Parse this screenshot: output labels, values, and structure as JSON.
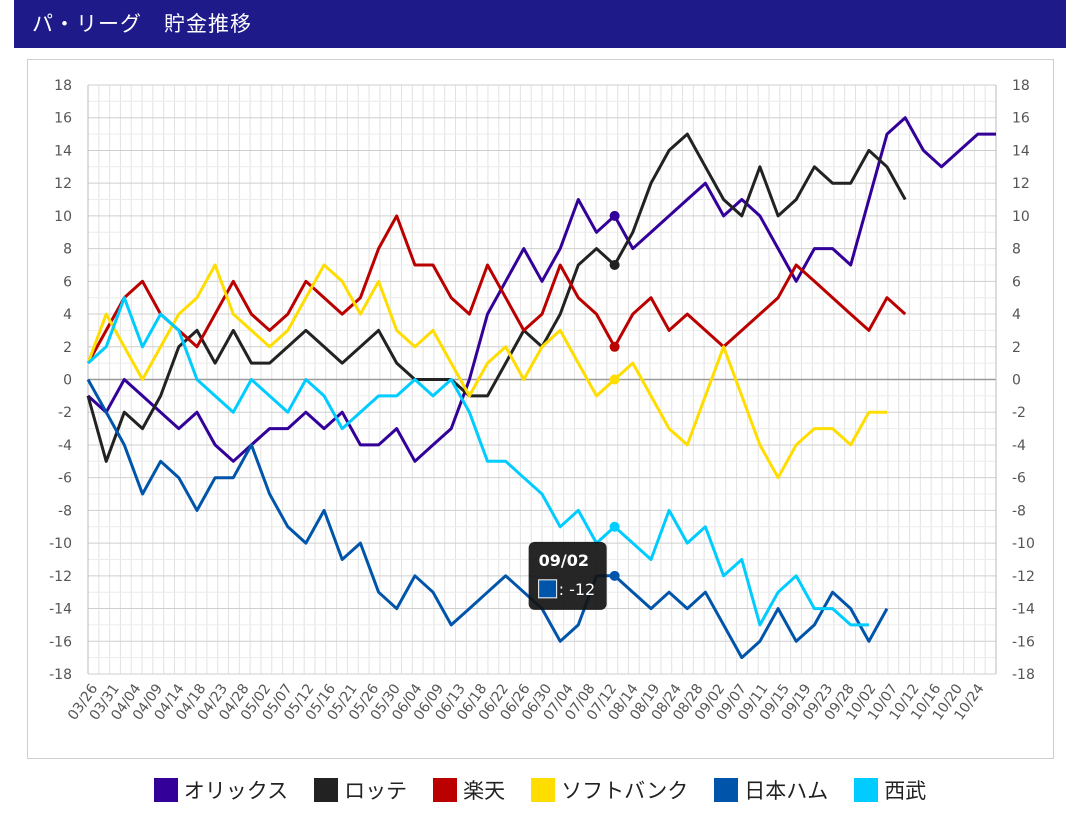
{
  "page_title": "パ・リーグ　貯金推移",
  "chart_data": {
    "type": "line",
    "title": "パ・リーグ　貯金推移",
    "xlabel": "",
    "ylabel": "",
    "ylim": [
      -18,
      18
    ],
    "yticks": [
      18,
      16,
      14,
      12,
      10,
      8,
      6,
      4,
      2,
      0,
      -2,
      -4,
      -6,
      -8,
      -10,
      -12,
      -14,
      -16,
      -18
    ],
    "x_tick_labels": [
      "03/26",
      "03/31",
      "04/04",
      "04/09",
      "04/14",
      "04/18",
      "04/23",
      "04/28",
      "05/02",
      "05/07",
      "05/12",
      "05/16",
      "05/21",
      "05/26",
      "05/30",
      "06/04",
      "06/09",
      "06/13",
      "06/18",
      "06/22",
      "06/26",
      "06/30",
      "07/04",
      "07/08",
      "07/12",
      "08/14",
      "08/19",
      "08/24",
      "08/28",
      "09/02",
      "09/07",
      "09/11",
      "09/15",
      "09/19",
      "09/23",
      "09/28",
      "10/02",
      "10/07",
      "10/12",
      "10/16",
      "10/20",
      "10/24"
    ],
    "grid": true,
    "legend_position": "bottom",
    "tooltip": {
      "date": "09/02",
      "value_text": ": -12",
      "series_index": 4
    },
    "hover_x_index": 29,
    "series": [
      {
        "name": "オリックス",
        "color": "#330099",
        "points": [
          [
            0,
            -1
          ],
          [
            1,
            -2
          ],
          [
            2,
            0
          ],
          [
            3,
            -1
          ],
          [
            4,
            -2
          ],
          [
            5,
            -3
          ],
          [
            6,
            -2
          ],
          [
            7,
            -4
          ],
          [
            8,
            -5
          ],
          [
            9,
            -4
          ],
          [
            10,
            -3
          ],
          [
            11,
            -3
          ],
          [
            12,
            -2
          ],
          [
            13,
            -3
          ],
          [
            14,
            -2
          ],
          [
            15,
            -4
          ],
          [
            16,
            -4
          ],
          [
            17,
            -3
          ],
          [
            18,
            -5
          ],
          [
            19,
            -4
          ],
          [
            20,
            -3
          ],
          [
            21,
            0
          ],
          [
            22,
            4
          ],
          [
            23,
            6
          ],
          [
            24,
            8
          ],
          [
            25,
            6
          ],
          [
            26,
            8
          ],
          [
            27,
            11
          ],
          [
            28,
            9
          ],
          [
            29,
            10
          ],
          [
            30,
            8
          ],
          [
            31,
            9
          ],
          [
            32,
            10
          ],
          [
            33,
            11
          ],
          [
            34,
            12
          ],
          [
            35,
            10
          ],
          [
            36,
            11
          ],
          [
            37,
            10
          ],
          [
            38,
            8
          ],
          [
            39,
            6
          ],
          [
            40,
            8
          ],
          [
            41,
            8
          ],
          [
            42,
            7
          ],
          [
            43,
            11
          ],
          [
            44,
            15
          ],
          [
            45,
            16
          ],
          [
            46,
            14
          ],
          [
            47,
            13
          ],
          [
            48,
            14
          ],
          [
            49,
            15
          ],
          [
            50,
            15
          ]
        ]
      },
      {
        "name": "ロッテ",
        "color": "#222222",
        "points": [
          [
            0,
            -1
          ],
          [
            1,
            -5
          ],
          [
            2,
            -2
          ],
          [
            3,
            -3
          ],
          [
            4,
            -1
          ],
          [
            5,
            2
          ],
          [
            6,
            3
          ],
          [
            7,
            1
          ],
          [
            8,
            3
          ],
          [
            9,
            1
          ],
          [
            10,
            1
          ],
          [
            11,
            2
          ],
          [
            12,
            3
          ],
          [
            13,
            2
          ],
          [
            14,
            1
          ],
          [
            15,
            2
          ],
          [
            16,
            3
          ],
          [
            17,
            1
          ],
          [
            18,
            0
          ],
          [
            19,
            0
          ],
          [
            20,
            0
          ],
          [
            21,
            -1
          ],
          [
            22,
            -1
          ],
          [
            23,
            1
          ],
          [
            24,
            3
          ],
          [
            25,
            2
          ],
          [
            26,
            4
          ],
          [
            27,
            7
          ],
          [
            28,
            8
          ],
          [
            29,
            7
          ],
          [
            30,
            9
          ],
          [
            31,
            12
          ],
          [
            32,
            14
          ],
          [
            33,
            15
          ],
          [
            34,
            13
          ],
          [
            35,
            11
          ],
          [
            36,
            10
          ],
          [
            37,
            13
          ],
          [
            38,
            10
          ],
          [
            39,
            11
          ],
          [
            40,
            13
          ],
          [
            41,
            12
          ],
          [
            42,
            12
          ],
          [
            43,
            14
          ],
          [
            44,
            13
          ],
          [
            45,
            11
          ]
        ]
      },
      {
        "name": "楽天",
        "color": "#bb0000",
        "points": [
          [
            0,
            1
          ],
          [
            1,
            3
          ],
          [
            2,
            5
          ],
          [
            3,
            6
          ],
          [
            4,
            4
          ],
          [
            5,
            3
          ],
          [
            6,
            2
          ],
          [
            7,
            4
          ],
          [
            8,
            6
          ],
          [
            9,
            4
          ],
          [
            10,
            3
          ],
          [
            11,
            4
          ],
          [
            12,
            6
          ],
          [
            13,
            5
          ],
          [
            14,
            4
          ],
          [
            15,
            5
          ],
          [
            16,
            8
          ],
          [
            17,
            10
          ],
          [
            18,
            7
          ],
          [
            19,
            7
          ],
          [
            20,
            5
          ],
          [
            21,
            4
          ],
          [
            22,
            7
          ],
          [
            23,
            5
          ],
          [
            24,
            3
          ],
          [
            25,
            4
          ],
          [
            26,
            7
          ],
          [
            27,
            5
          ],
          [
            28,
            4
          ],
          [
            29,
            2
          ],
          [
            30,
            4
          ],
          [
            31,
            5
          ],
          [
            32,
            3
          ],
          [
            33,
            4
          ],
          [
            34,
            3
          ],
          [
            35,
            2
          ],
          [
            36,
            3
          ],
          [
            37,
            4
          ],
          [
            38,
            5
          ],
          [
            39,
            7
          ],
          [
            40,
            6
          ],
          [
            41,
            5
          ],
          [
            42,
            4
          ],
          [
            43,
            3
          ],
          [
            44,
            5
          ],
          [
            45,
            4
          ]
        ]
      },
      {
        "name": "ソフトバンク",
        "color": "#ffdd00",
        "points": [
          [
            0,
            1
          ],
          [
            1,
            4
          ],
          [
            2,
            2
          ],
          [
            3,
            0
          ],
          [
            4,
            2
          ],
          [
            5,
            4
          ],
          [
            6,
            5
          ],
          [
            7,
            7
          ],
          [
            8,
            4
          ],
          [
            9,
            3
          ],
          [
            10,
            2
          ],
          [
            11,
            3
          ],
          [
            12,
            5
          ],
          [
            13,
            7
          ],
          [
            14,
            6
          ],
          [
            15,
            4
          ],
          [
            16,
            6
          ],
          [
            17,
            3
          ],
          [
            18,
            2
          ],
          [
            19,
            3
          ],
          [
            20,
            1
          ],
          [
            21,
            -1
          ],
          [
            22,
            1
          ],
          [
            23,
            2
          ],
          [
            24,
            0
          ],
          [
            25,
            2
          ],
          [
            26,
            3
          ],
          [
            27,
            1
          ],
          [
            28,
            -1
          ],
          [
            29,
            0
          ],
          [
            30,
            1
          ],
          [
            31,
            -1
          ],
          [
            32,
            -3
          ],
          [
            33,
            -4
          ],
          [
            34,
            -1
          ],
          [
            35,
            2
          ],
          [
            36,
            -1
          ],
          [
            37,
            -4
          ],
          [
            38,
            -6
          ],
          [
            39,
            -4
          ],
          [
            40,
            -3
          ],
          [
            41,
            -3
          ],
          [
            42,
            -4
          ],
          [
            43,
            -2
          ],
          [
            44,
            -2
          ]
        ]
      },
      {
        "name": "日本ハム",
        "color": "#0055aa",
        "points": [
          [
            0,
            0
          ],
          [
            1,
            -2
          ],
          [
            2,
            -4
          ],
          [
            3,
            -7
          ],
          [
            4,
            -5
          ],
          [
            5,
            -6
          ],
          [
            6,
            -8
          ],
          [
            7,
            -6
          ],
          [
            8,
            -6
          ],
          [
            9,
            -4
          ],
          [
            10,
            -7
          ],
          [
            11,
            -9
          ],
          [
            12,
            -10
          ],
          [
            13,
            -8
          ],
          [
            14,
            -11
          ],
          [
            15,
            -10
          ],
          [
            16,
            -13
          ],
          [
            17,
            -14
          ],
          [
            18,
            -12
          ],
          [
            19,
            -13
          ],
          [
            20,
            -15
          ],
          [
            21,
            -14
          ],
          [
            22,
            -13
          ],
          [
            23,
            -12
          ],
          [
            24,
            -13
          ],
          [
            25,
            -14
          ],
          [
            26,
            -16
          ],
          [
            27,
            -15
          ],
          [
            28,
            -12
          ],
          [
            29,
            -12
          ],
          [
            30,
            -13
          ],
          [
            31,
            -14
          ],
          [
            32,
            -13
          ],
          [
            33,
            -14
          ],
          [
            34,
            -13
          ],
          [
            35,
            -15
          ],
          [
            36,
            -17
          ],
          [
            37,
            -16
          ],
          [
            38,
            -14
          ],
          [
            39,
            -16
          ],
          [
            40,
            -15
          ],
          [
            41,
            -13
          ],
          [
            42,
            -14
          ],
          [
            43,
            -16
          ],
          [
            44,
            -14
          ]
        ]
      },
      {
        "name": "西武",
        "color": "#00ccff",
        "points": [
          [
            0,
            1
          ],
          [
            1,
            2
          ],
          [
            2,
            5
          ],
          [
            3,
            2
          ],
          [
            4,
            4
          ],
          [
            5,
            3
          ],
          [
            6,
            0
          ],
          [
            7,
            -1
          ],
          [
            8,
            -2
          ],
          [
            9,
            0
          ],
          [
            10,
            -1
          ],
          [
            11,
            -2
          ],
          [
            12,
            0
          ],
          [
            13,
            -1
          ],
          [
            14,
            -3
          ],
          [
            15,
            -2
          ],
          [
            16,
            -1
          ],
          [
            17,
            -1
          ],
          [
            18,
            0
          ],
          [
            19,
            -1
          ],
          [
            20,
            0
          ],
          [
            21,
            -2
          ],
          [
            22,
            -5
          ],
          [
            23,
            -5
          ],
          [
            24,
            -6
          ],
          [
            25,
            -7
          ],
          [
            26,
            -9
          ],
          [
            27,
            -8
          ],
          [
            28,
            -10
          ],
          [
            29,
            -9
          ],
          [
            30,
            -10
          ],
          [
            31,
            -11
          ],
          [
            32,
            -8
          ],
          [
            33,
            -10
          ],
          [
            34,
            -9
          ],
          [
            35,
            -12
          ],
          [
            36,
            -11
          ],
          [
            37,
            -15
          ],
          [
            38,
            -13
          ],
          [
            39,
            -12
          ],
          [
            40,
            -14
          ],
          [
            41,
            -14
          ],
          [
            42,
            -15
          ],
          [
            43,
            -15
          ]
        ]
      }
    ]
  }
}
